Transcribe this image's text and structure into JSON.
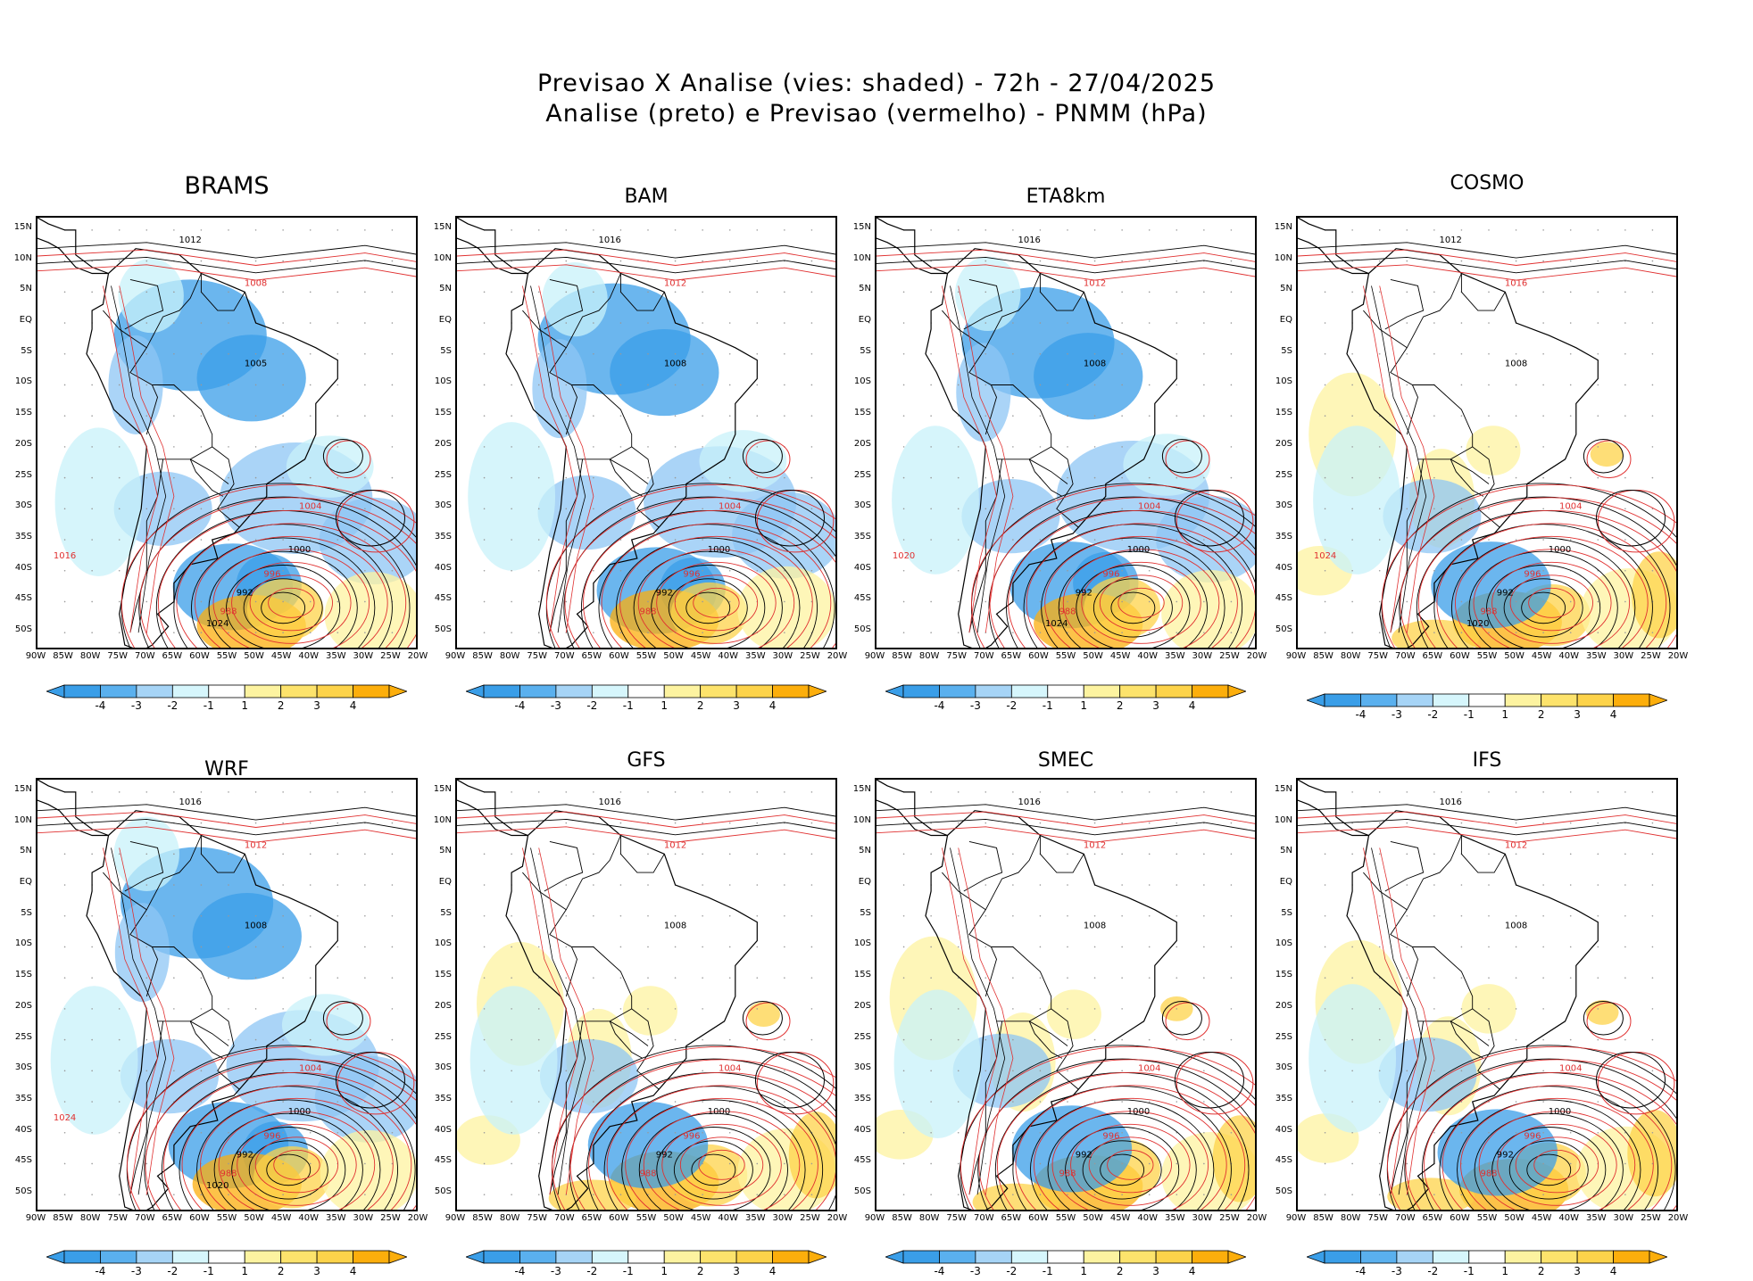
{
  "header": {
    "line1": "Previsao X Analise (vies: shaded) - 72h - 27/04/2025",
    "line2": "Analise (preto) e Previsao (vermelho) - PNMM (hPa)"
  },
  "legend_colors": {
    "analysis_contour": "#000000",
    "forecast_contour": "#e03030",
    "bias": [
      "#3a9ee8",
      "#8ec6f4",
      "#c8f2fa",
      "#ffffff",
      "#fdf3a0",
      "#fdd34a",
      "#fcae0c"
    ]
  },
  "colorbar_labels": [
    "-4",
    "-3",
    "-2",
    "-1",
    "1",
    "2",
    "3",
    "4"
  ],
  "lat_labels": [
    "15N",
    "10N",
    "5N",
    "EQ",
    "5S",
    "10S",
    "15S",
    "20S",
    "25S",
    "30S",
    "35S",
    "40S",
    "45S",
    "50S"
  ],
  "lon_labels": [
    "90W",
    "85W",
    "80W",
    "75W",
    "70W",
    "65W",
    "60W",
    "55W",
    "50W",
    "45W",
    "40W",
    "35W",
    "30W",
    "25W",
    "20W"
  ],
  "panels": [
    {
      "model": "BRAMS",
      "shading": "cold",
      "contours": [
        "1012",
        "1008",
        "1005",
        "1004",
        "1000",
        "996",
        "992",
        "988",
        "1024",
        "1016"
      ]
    },
    {
      "model": "BAM",
      "shading": "cold",
      "contours": [
        "1016",
        "1012",
        "1008",
        "1004",
        "1000",
        "996",
        "992",
        "988"
      ]
    },
    {
      "model": "ETA8km",
      "shading": "cold",
      "contours": [
        "1016",
        "1012",
        "1008",
        "1004",
        "1000",
        "996",
        "992",
        "988",
        "1024",
        "1020"
      ]
    },
    {
      "model": "COSMO",
      "shading": "warm",
      "contours": [
        "1012",
        "1016",
        "1008",
        "1004",
        "1000",
        "996",
        "992",
        "988",
        "1020",
        "1024"
      ]
    },
    {
      "model": "WRF",
      "shading": "cold",
      "contours": [
        "1016",
        "1012",
        "1008",
        "1004",
        "1000",
        "996",
        "992",
        "988",
        "1020",
        "1024"
      ]
    },
    {
      "model": "GFS",
      "shading": "warm",
      "contours": [
        "1016",
        "1012",
        "1008",
        "1004",
        "1000",
        "996",
        "992",
        "988"
      ]
    },
    {
      "model": "SMEC",
      "shading": "warm",
      "contours": [
        "1016",
        "1012",
        "1008",
        "1004",
        "1000",
        "996",
        "992",
        "988"
      ]
    },
    {
      "model": "IFS",
      "shading": "warm",
      "contours": [
        "1016",
        "1012",
        "1008",
        "1004",
        "1000",
        "996",
        "992",
        "988"
      ]
    }
  ]
}
